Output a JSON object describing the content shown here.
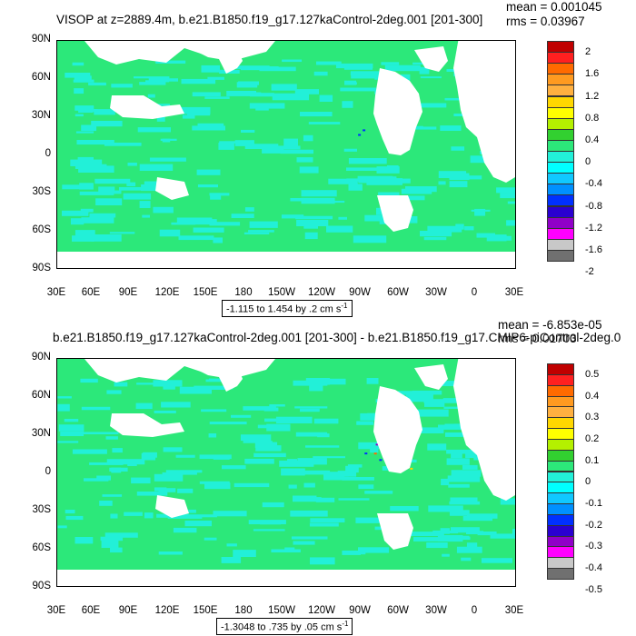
{
  "panels": [
    {
      "title": "VISOP at z=2889.4m, b.e21.B1850.f19_g17.127kaControl-2deg.001 [201-300]",
      "mean": "mean = 0.001045",
      "rms": "rms = 0.03967",
      "range_label": "-1.115 to 1.454 by .2 cm s",
      "range_sup": "-1",
      "colorbar_labels": [
        "2",
        "1.6",
        "1.2",
        "0.8",
        "0.4",
        "0",
        "-0.4",
        "-0.8",
        "-1.2",
        "-1.6",
        "-2"
      ]
    },
    {
      "title": "b.e21.B1850.f19_g17.127kaControl-2deg.001 [201-300] - b.e21.B1850.f19_g17.CMIP6-piControl-2deg.0",
      "mean": "mean = -6.853e-05",
      "rms": "rms = 0.01703",
      "range_label": "-1.3048 to .735 by .05 cm s",
      "range_sup": "-1",
      "colorbar_labels": [
        "0.5",
        "0.4",
        "0.3",
        "0.2",
        "0.1",
        "0",
        "-0.1",
        "-0.2",
        "-0.3",
        "-0.4",
        "-0.5"
      ]
    }
  ],
  "axes": {
    "lat_labels": [
      "90N",
      "60N",
      "30N",
      "0",
      "30S",
      "60S",
      "90S"
    ],
    "lon_labels": [
      "30E",
      "60E",
      "90E",
      "120E",
      "150E",
      "180",
      "150W",
      "120W",
      "90W",
      "60W",
      "30W",
      "0",
      "30E"
    ]
  },
  "colors": {
    "dominant_fill": "#2ce87a",
    "secondary_fill": "#22f0d8",
    "land": "#ffffff",
    "colorbar": [
      "#c00000",
      "#ff2020",
      "#ff6a00",
      "#ff9a20",
      "#ffb040",
      "#ffd700",
      "#ffff00",
      "#b4f000",
      "#32d030",
      "#2ce87a",
      "#22f0d8",
      "#00ffff",
      "#10c8ff",
      "#0090ff",
      "#0030ff",
      "#2a00d0",
      "#9000c8",
      "#ff00ff",
      "#c8c8c8",
      "#707070"
    ]
  },
  "map_data": {
    "lat_range": [
      "90S",
      "90N"
    ],
    "lon_range": [
      "30E",
      "30E"
    ],
    "projection": "cylindrical-equidistant"
  }
}
